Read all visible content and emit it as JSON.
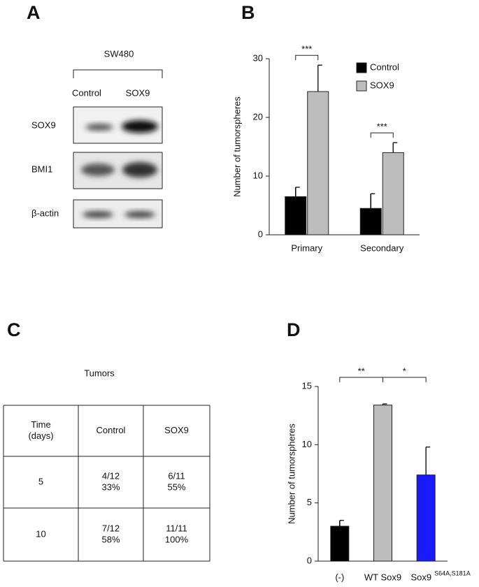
{
  "panel_labels": [
    "A",
    "B",
    "C",
    "D"
  ],
  "blot": {
    "cell_line": "SW480",
    "lanes": [
      "Control",
      "SOX9"
    ],
    "rows": [
      "SOX9",
      "BMI1",
      "β-actin"
    ]
  },
  "table": {
    "title": "Tumors",
    "header": [
      [
        "Time",
        "(days)"
      ],
      [
        "Control"
      ],
      [
        "SOX9"
      ]
    ],
    "rows": [
      [
        [
          "5"
        ],
        [
          "4/12",
          "33%"
        ],
        [
          "6/11",
          "55%"
        ]
      ],
      [
        [
          "10"
        ],
        [
          "7/12",
          "58%"
        ],
        [
          "11/11",
          "100%"
        ]
      ]
    ]
  },
  "chart_data": [
    {
      "type": "grouped_bar",
      "ylabel": "Number of tumorspheres",
      "categories": [
        "Primary",
        "Secondary"
      ],
      "series": [
        {
          "name": "Control",
          "color": "#000000",
          "values": [
            6.5,
            4.5
          ],
          "errors": [
            1.6,
            2.5
          ]
        },
        {
          "name": "SOX9",
          "color": "#bdbdbd",
          "values": [
            24.4,
            14.0
          ],
          "errors": [
            4.5,
            1.7
          ]
        }
      ],
      "ylim": [
        0,
        30
      ],
      "yticks": [
        0,
        10,
        20,
        30
      ],
      "legend": "top-right",
      "annotations": [
        "***",
        "***"
      ]
    },
    {
      "type": "bar",
      "ylabel": "Number of tumorspheres",
      "categories": [
        "(-)",
        "WT Sox9",
        "Sox9"
      ],
      "category_superscripts": [
        null,
        null,
        "S64A,S181A"
      ],
      "values": [
        3.0,
        13.4,
        7.4
      ],
      "errors": [
        0.5,
        0.1,
        2.4
      ],
      "colors": [
        "#000000",
        "#bdbdbd",
        "#1a1aff"
      ],
      "ylim": [
        0,
        15
      ],
      "yticks": [
        0,
        5,
        10,
        15
      ],
      "annotations": [
        "**",
        "*"
      ]
    }
  ]
}
